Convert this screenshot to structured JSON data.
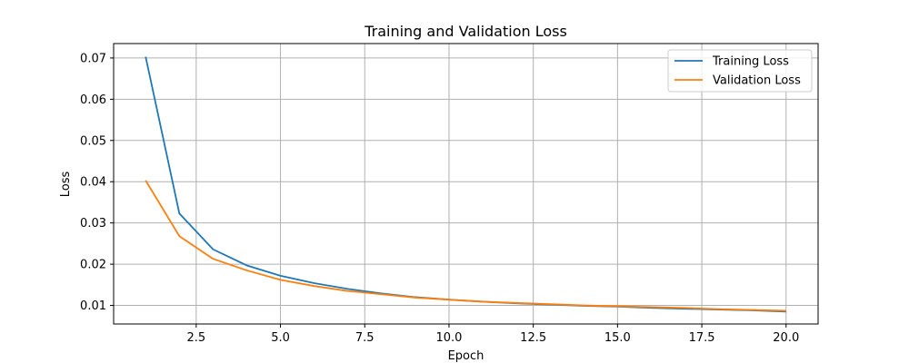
{
  "chart_data": {
    "type": "line",
    "title": "Training and Validation Loss",
    "xlabel": "Epoch",
    "ylabel": "Loss",
    "xlim": [
      0.05,
      20.95
    ],
    "ylim": [
      0.0055,
      0.0735
    ],
    "xticks": [
      2.5,
      5.0,
      7.5,
      10.0,
      12.5,
      15.0,
      17.5,
      20.0
    ],
    "xtick_labels": [
      "2.5",
      "5.0",
      "7.5",
      "10.0",
      "12.5",
      "15.0",
      "17.5",
      "20.0"
    ],
    "yticks": [
      0.01,
      0.02,
      0.03,
      0.04,
      0.05,
      0.06,
      0.07
    ],
    "ytick_labels": [
      "0.01",
      "0.02",
      "0.03",
      "0.04",
      "0.05",
      "0.06",
      "0.07"
    ],
    "grid": true,
    "legend_position": "top-right",
    "x": [
      1,
      2,
      3,
      4,
      5,
      6,
      7,
      8,
      9,
      10,
      11,
      12,
      13,
      14,
      15,
      16,
      17,
      18,
      19,
      20
    ],
    "series": [
      {
        "name": "Training Loss",
        "color": "#1f77b4",
        "values": [
          0.0703,
          0.0323,
          0.0236,
          0.0197,
          0.0172,
          0.0154,
          0.014,
          0.0129,
          0.012,
          0.0114,
          0.0109,
          0.0105,
          0.0102,
          0.0099,
          0.0097,
          0.0094,
          0.0092,
          0.009,
          0.0088,
          0.0085
        ]
      },
      {
        "name": "Validation Loss",
        "color": "#ff7f0e",
        "values": [
          0.0403,
          0.0268,
          0.0213,
          0.0185,
          0.0162,
          0.0147,
          0.0135,
          0.0127,
          0.0119,
          0.0114,
          0.0109,
          0.0106,
          0.0103,
          0.01,
          0.0098,
          0.0096,
          0.0094,
          0.0091,
          0.0089,
          0.0087
        ]
      }
    ]
  }
}
